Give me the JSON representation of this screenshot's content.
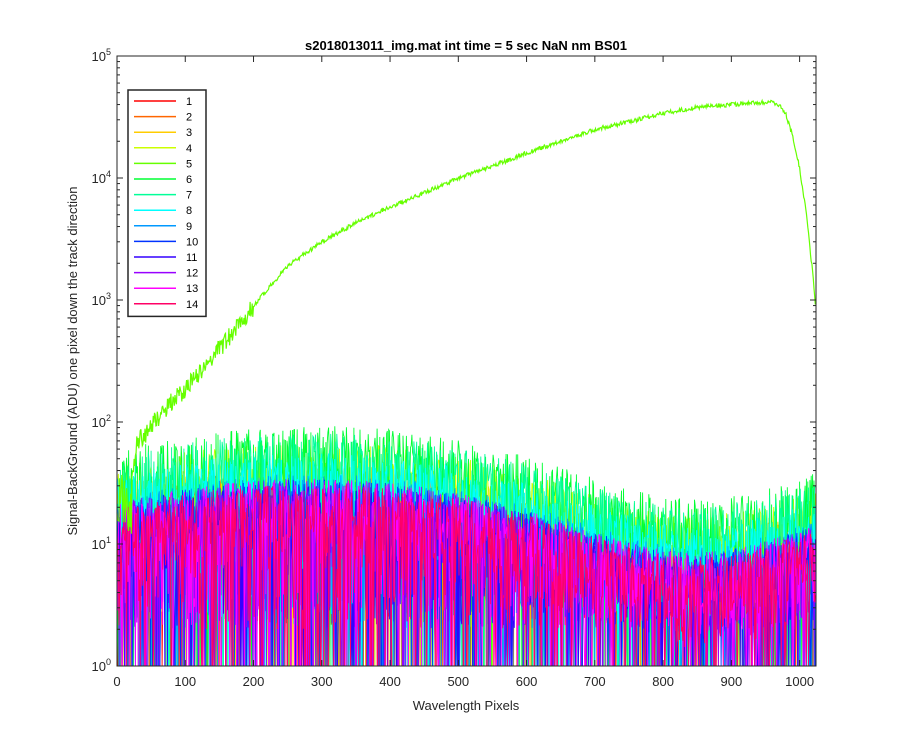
{
  "chart_data": {
    "type": "line",
    "title": "s2018013011_img.mat int time = 5 sec  NaN nm BS01",
    "xlabel": "Wavelength Pixels",
    "ylabel": "Signal-BackGround (ADU) one pixel down the track direction",
    "xlim": [
      0,
      1024
    ],
    "ylim": [
      1,
      100000
    ],
    "yscale": "log",
    "grid": false,
    "legend_position": "top-left",
    "x_ticks": [
      "0",
      "100",
      "200",
      "300",
      "400",
      "500",
      "600",
      "700",
      "800",
      "900",
      "1000"
    ],
    "x_tick_values": [
      0,
      100,
      200,
      300,
      400,
      500,
      600,
      700,
      800,
      900,
      1000
    ],
    "y_ticks": [
      {
        "base": "10",
        "exp": "0",
        "value": 1
      },
      {
        "base": "10",
        "exp": "1",
        "value": 10
      },
      {
        "base": "10",
        "exp": "2",
        "value": 100
      },
      {
        "base": "10",
        "exp": "3",
        "value": 1000
      },
      {
        "base": "10",
        "exp": "4",
        "value": 10000
      },
      {
        "base": "10",
        "exp": "5",
        "value": 100000
      }
    ],
    "series": [
      {
        "name": "1",
        "color": "#ff0000",
        "noise_level": 12
      },
      {
        "name": "2",
        "color": "#ff6600",
        "noise_level": 14
      },
      {
        "name": "3",
        "color": "#ffcc00",
        "noise_level": 16
      },
      {
        "name": "4",
        "color": "#ccff00",
        "noise_level": 22
      },
      {
        "name": "5",
        "color": "#66ff00",
        "noise_level": 0,
        "profile_x": [
          22,
          30,
          40,
          60,
          80,
          100,
          150,
          200,
          250,
          300,
          350,
          400,
          450,
          500,
          550,
          600,
          650,
          700,
          750,
          800,
          850,
          900,
          940,
          960,
          970,
          980,
          990,
          1000,
          1010,
          1020,
          1023
        ],
        "profile_y": [
          40,
          70,
          80,
          110,
          150,
          190,
          400,
          900,
          1900,
          3000,
          4300,
          5800,
          7600,
          10000,
          12500,
          16000,
          20000,
          25000,
          29000,
          34000,
          38000,
          40000,
          41500,
          42000,
          40000,
          33000,
          22000,
          12000,
          5000,
          1500,
          900
        ]
      },
      {
        "name": "6",
        "color": "#00ff33",
        "noise_level": 30
      },
      {
        "name": "7",
        "color": "#00ff99",
        "noise_level": 26
      },
      {
        "name": "8",
        "color": "#00ffff",
        "noise_level": 18
      },
      {
        "name": "9",
        "color": "#0099ff",
        "noise_level": 12
      },
      {
        "name": "10",
        "color": "#0033ff",
        "noise_level": 11
      },
      {
        "name": "11",
        "color": "#3300ff",
        "noise_level": 10
      },
      {
        "name": "12",
        "color": "#9900ff",
        "noise_level": 11
      },
      {
        "name": "13",
        "color": "#ff00ff",
        "noise_level": 11
      },
      {
        "name": "14",
        "color": "#ff0066",
        "noise_level": 10
      }
    ]
  }
}
